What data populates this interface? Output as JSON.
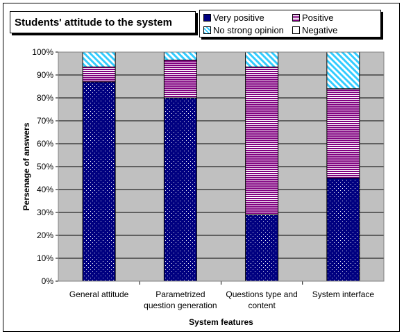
{
  "chart_data": {
    "type": "bar",
    "stacked": true,
    "title": "Students' attitude to the system",
    "xlabel": "System features",
    "ylabel": "Persenage of answers",
    "ylim": [
      0,
      100
    ],
    "ytick_labels": [
      "0%",
      "10%",
      "20%",
      "30%",
      "40%",
      "50%",
      "60%",
      "70%",
      "80%",
      "90%",
      "100%"
    ],
    "categories": [
      [
        "General attitude"
      ],
      [
        "Parametrized",
        "question generation"
      ],
      [
        "Questions type and",
        "content"
      ],
      [
        "System interface"
      ]
    ],
    "series": [
      {
        "name": "Very positive",
        "values": [
          87,
          80,
          29,
          45
        ],
        "color": "#000080",
        "pattern": "dots"
      },
      {
        "name": "Positive",
        "values": [
          6.5,
          16.5,
          64.5,
          39
        ],
        "color": "#800080",
        "pattern": "hstripes"
      },
      {
        "name": "No strong opinion",
        "values": [
          6.5,
          3.5,
          6.5,
          16
        ],
        "color": "#33ccff",
        "pattern": "diagonal"
      },
      {
        "name": "Negative",
        "values": [
          0,
          0,
          0,
          0
        ],
        "color": "#ffffff",
        "pattern": "none"
      }
    ],
    "plot_background": "#c0c0c0",
    "grid": true,
    "legend_position": "top-right"
  }
}
